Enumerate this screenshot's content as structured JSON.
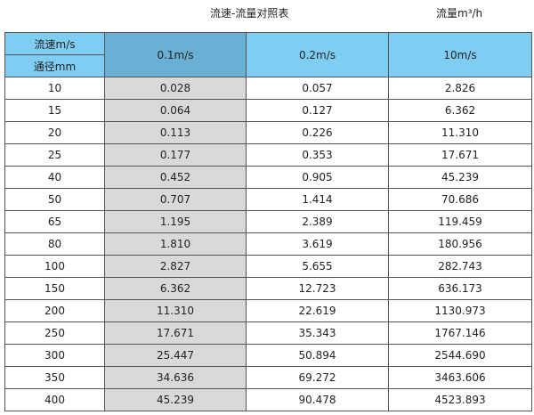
{
  "title": "流速-流量对照表",
  "unit_label": "流量m³/h",
  "header": {
    "velocity_label": "流速m/s",
    "diameter_label": "通径mm",
    "columns": [
      "0.1m/s",
      "0.2m/s",
      "10m/s"
    ]
  },
  "rows": [
    {
      "dn": "10",
      "v1": "0.028",
      "v2": "0.057",
      "v3": "2.826"
    },
    {
      "dn": "15",
      "v1": "0.064",
      "v2": "0.127",
      "v3": "6.362"
    },
    {
      "dn": "20",
      "v1": "0.113",
      "v2": "0.226",
      "v3": "11.310"
    },
    {
      "dn": "25",
      "v1": "0.177",
      "v2": "0.353",
      "v3": "17.671"
    },
    {
      "dn": "40",
      "v1": "0.452",
      "v2": "0.905",
      "v3": "45.239"
    },
    {
      "dn": "50",
      "v1": "0.707",
      "v2": "1.414",
      "v3": "70.686"
    },
    {
      "dn": "65",
      "v1": "1.195",
      "v2": "2.389",
      "v3": "119.459"
    },
    {
      "dn": "80",
      "v1": "1.810",
      "v2": "3.619",
      "v3": "180.956"
    },
    {
      "dn": "100",
      "v1": "2.827",
      "v2": "5.655",
      "v3": "282.743"
    },
    {
      "dn": "150",
      "v1": "6.362",
      "v2": "12.723",
      "v3": "636.173"
    },
    {
      "dn": "200",
      "v1": "11.310",
      "v2": "22.619",
      "v3": "1130.973"
    },
    {
      "dn": "250",
      "v1": "17.671",
      "v2": "35.343",
      "v3": "1767.146"
    },
    {
      "dn": "300",
      "v1": "25.447",
      "v2": "50.894",
      "v3": "2544.690"
    },
    {
      "dn": "350",
      "v1": "34.636",
      "v2": "69.272",
      "v3": "3463.606"
    },
    {
      "dn": "400",
      "v1": "45.239",
      "v2": "90.478",
      "v3": "4523.893"
    }
  ],
  "colors": {
    "header": "#7fcdf3",
    "header_selected": "#6ab0d4",
    "highlight_column": "#d9d9d9"
  }
}
